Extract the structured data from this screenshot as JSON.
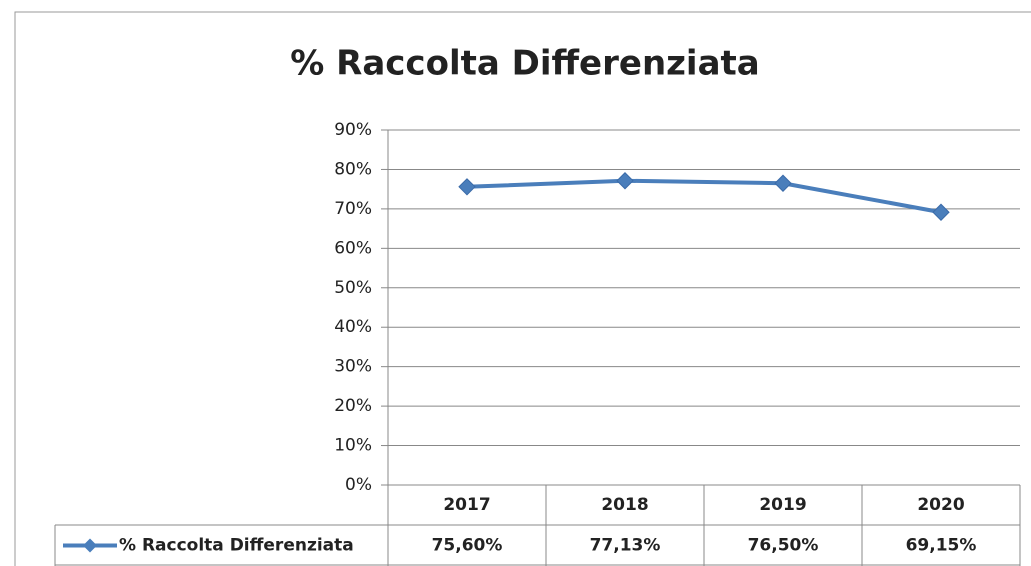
{
  "chart_data": {
    "type": "line",
    "title": "% Raccolta Differenziata",
    "categories": [
      "2017",
      "2018",
      "2019",
      "2020"
    ],
    "series": [
      {
        "name": "% Raccolta Differenziata",
        "color": "#4a7ebb",
        "values": [
          75.6,
          77.13,
          76.5,
          69.15
        ],
        "value_labels": [
          "75,60%",
          "77,13%",
          "76,50%",
          "69,15%"
        ]
      }
    ],
    "ylim": [
      0,
      90
    ],
    "yticks": [
      {
        "value": 0,
        "label": "0%"
      },
      {
        "value": 10,
        "label": "10%"
      },
      {
        "value": 20,
        "label": "20%"
      },
      {
        "value": 30,
        "label": "30%"
      },
      {
        "value": 40,
        "label": "40%"
      },
      {
        "value": 50,
        "label": "50%"
      },
      {
        "value": 60,
        "label": "60%"
      },
      {
        "value": 70,
        "label": "70%"
      },
      {
        "value": 80,
        "label": "80%"
      },
      {
        "value": 90,
        "label": "90%"
      }
    ],
    "grid": true
  }
}
